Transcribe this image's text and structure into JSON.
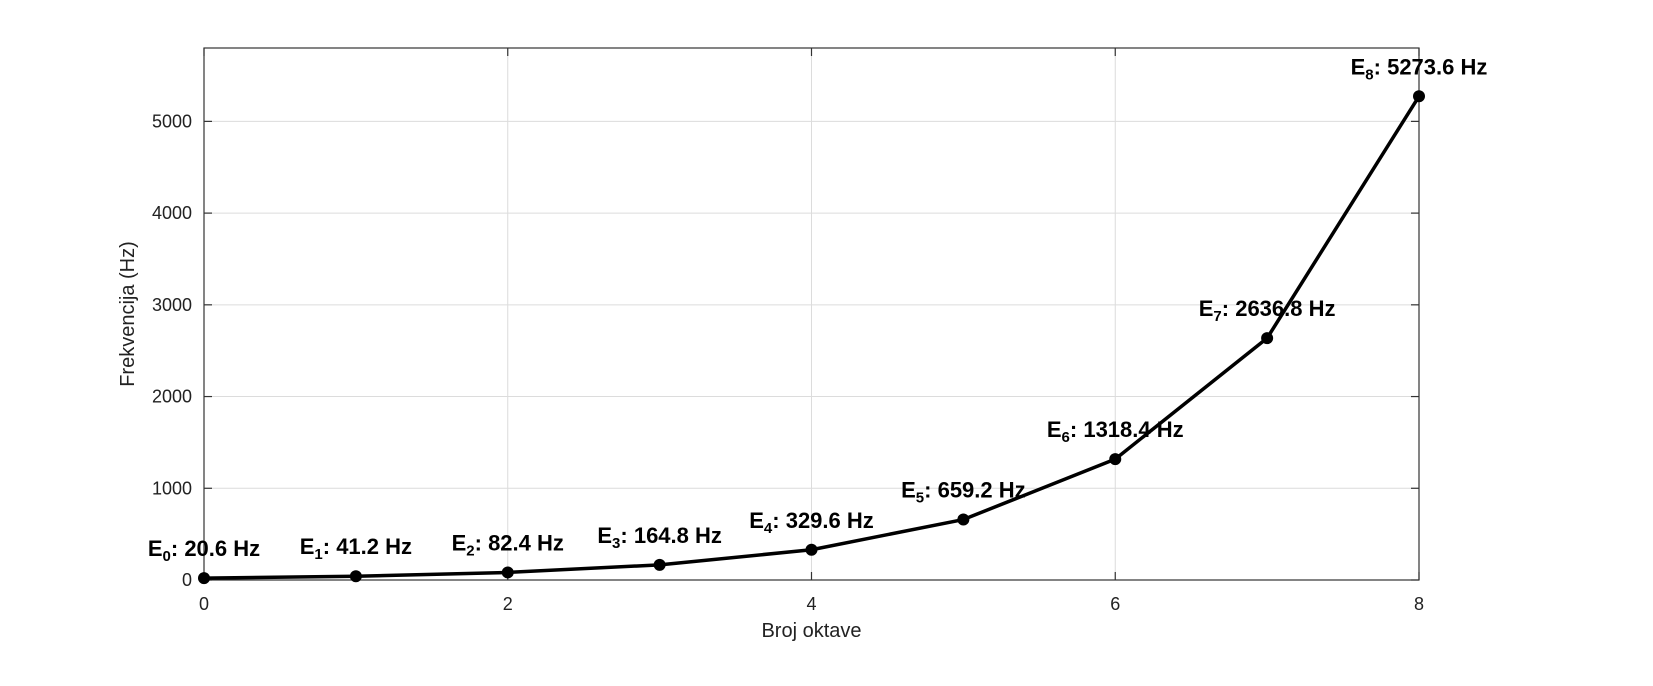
{
  "chart_data": {
    "type": "line",
    "title": "",
    "xlabel": "Broj oktave",
    "ylabel": "Frekvencija (Hz)",
    "xlim": [
      0,
      8
    ],
    "ylim": [
      0,
      5800
    ],
    "x_ticks": [
      0,
      2,
      4,
      6,
      8
    ],
    "y_ticks": [
      0,
      1000,
      2000,
      3000,
      4000,
      5000
    ],
    "grid": true,
    "series": [
      {
        "x": [
          0,
          1,
          2,
          3,
          4,
          5,
          6,
          7,
          8
        ],
        "values": [
          20.6,
          41.2,
          82.4,
          164.8,
          329.6,
          659.2,
          1318.4,
          2636.8,
          5273.6
        ],
        "color": "#000000",
        "marker": "circle"
      }
    ],
    "annotations": [
      {
        "note": "E",
        "sub": "0",
        "text": ": 20.6 Hz"
      },
      {
        "note": "E",
        "sub": "1",
        "text": ": 41.2 Hz"
      },
      {
        "note": "E",
        "sub": "2",
        "text": ": 82.4 Hz"
      },
      {
        "note": "E",
        "sub": "3",
        "text": ": 164.8 Hz"
      },
      {
        "note": "E",
        "sub": "4",
        "text": ": 329.6 Hz"
      },
      {
        "note": "E",
        "sub": "5",
        "text": ": 659.2 Hz"
      },
      {
        "note": "E",
        "sub": "6",
        "text": ": 1318.4 Hz"
      },
      {
        "note": "E",
        "sub": "7",
        "text": ": 2636.8 Hz"
      },
      {
        "note": "E",
        "sub": "8",
        "text": ": 5273.6 Hz"
      }
    ]
  }
}
